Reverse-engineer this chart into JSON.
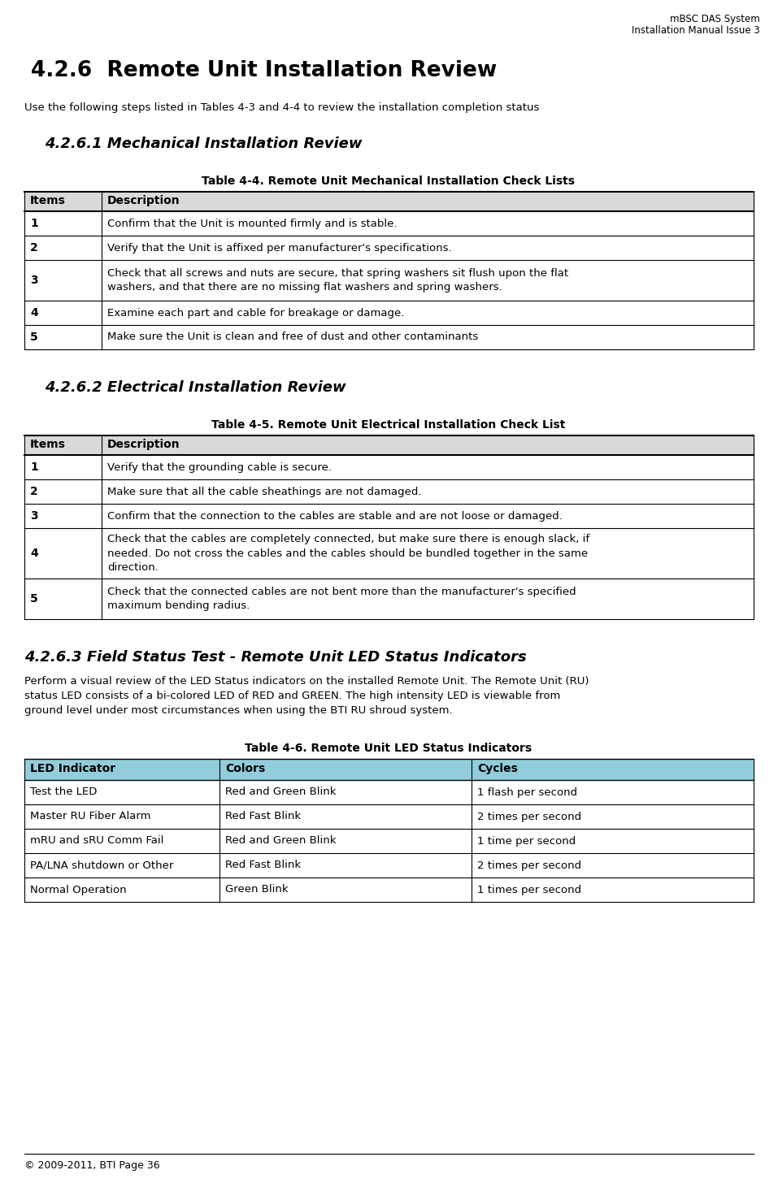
{
  "header_line1": "mBSC DAS System",
  "header_line2": "Installation Manual Issue 3",
  "footer": "© 2009-2011, BTI Page 36",
  "section_title": "4.2.6  Remote Unit Installation Review",
  "section_intro": "Use the following steps listed in Tables 4-3 and 4-4 to review the installation completion status",
  "subsection1_title": "4.2.6.1 Mechanical Installation Review",
  "table1_title": "Table 4-4. Remote Unit Mechanical Installation Check Lists",
  "table1_headers": [
    "Items",
    "Description"
  ],
  "table1_rows": [
    [
      "1",
      "Confirm that the Unit is mounted firmly and is stable."
    ],
    [
      "2",
      "Verify that the Unit is affixed per manufacturer's specifications."
    ],
    [
      "3",
      "Check that all screws and nuts are secure, that spring washers sit flush upon the flat\nwashers, and that there are no missing flat washers and spring washers."
    ],
    [
      "4",
      "Examine each part and cable for breakage or damage."
    ],
    [
      "5",
      "Make sure the Unit is clean and free of dust and other contaminants"
    ]
  ],
  "subsection2_title": "4.2.6.2 Electrical Installation Review",
  "table2_title": "Table 4-5. Remote Unit Electrical Installation Check List",
  "table2_headers": [
    "Items",
    "Description"
  ],
  "table2_rows": [
    [
      "1",
      "Verify that the grounding cable is secure."
    ],
    [
      "2",
      "Make sure that all the cable sheathings are not damaged."
    ],
    [
      "3",
      "Confirm that the connection to the cables are stable and are not loose or damaged."
    ],
    [
      "4",
      "Check that the cables are completely connected, but make sure there is enough slack, if\nneeded. Do not cross the cables and the cables should be bundled together in the same\ndirection."
    ],
    [
      "5",
      "Check that the connected cables are not bent more than the manufacturer's specified\nmaximum bending radius."
    ]
  ],
  "subsection3_title": "4.2.6.3 Field Status Test - Remote Unit LED Status Indicators",
  "subsection3_body_lines": [
    "Perform a visual review of the LED Status indicators on the installed Remote Unit. The Remote Unit (RU)",
    "status LED consists of a bi-colored LED of RED and GREEN. The high intensity LED is viewable from",
    "ground level under most circumstances when using the BTI RU shroud system."
  ],
  "table3_title": "Table 4-6. Remote Unit LED Status Indicators",
  "table3_headers": [
    "LED Indicator",
    "Colors",
    "Cycles"
  ],
  "table3_header_bg": "#92CDDC",
  "table3_header_color": "#000000",
  "table3_rows": [
    [
      "Test the LED",
      "Red and Green Blink",
      "1 flash per second"
    ],
    [
      "Master RU Fiber Alarm",
      "Red Fast Blink",
      "2 times per second"
    ],
    [
      "mRU and sRU Comm Fail",
      "Red and Green Blink",
      "1 time per second"
    ],
    [
      "PA/LNA shutdown or Other",
      "Red Fast Blink",
      "2 times per second"
    ],
    [
      "Normal Operation",
      "Green Blink",
      "1 times per second"
    ]
  ],
  "table_header_bg": "#D9D9D9",
  "page_bg": "#FFFFFF",
  "text_color": "#000000"
}
